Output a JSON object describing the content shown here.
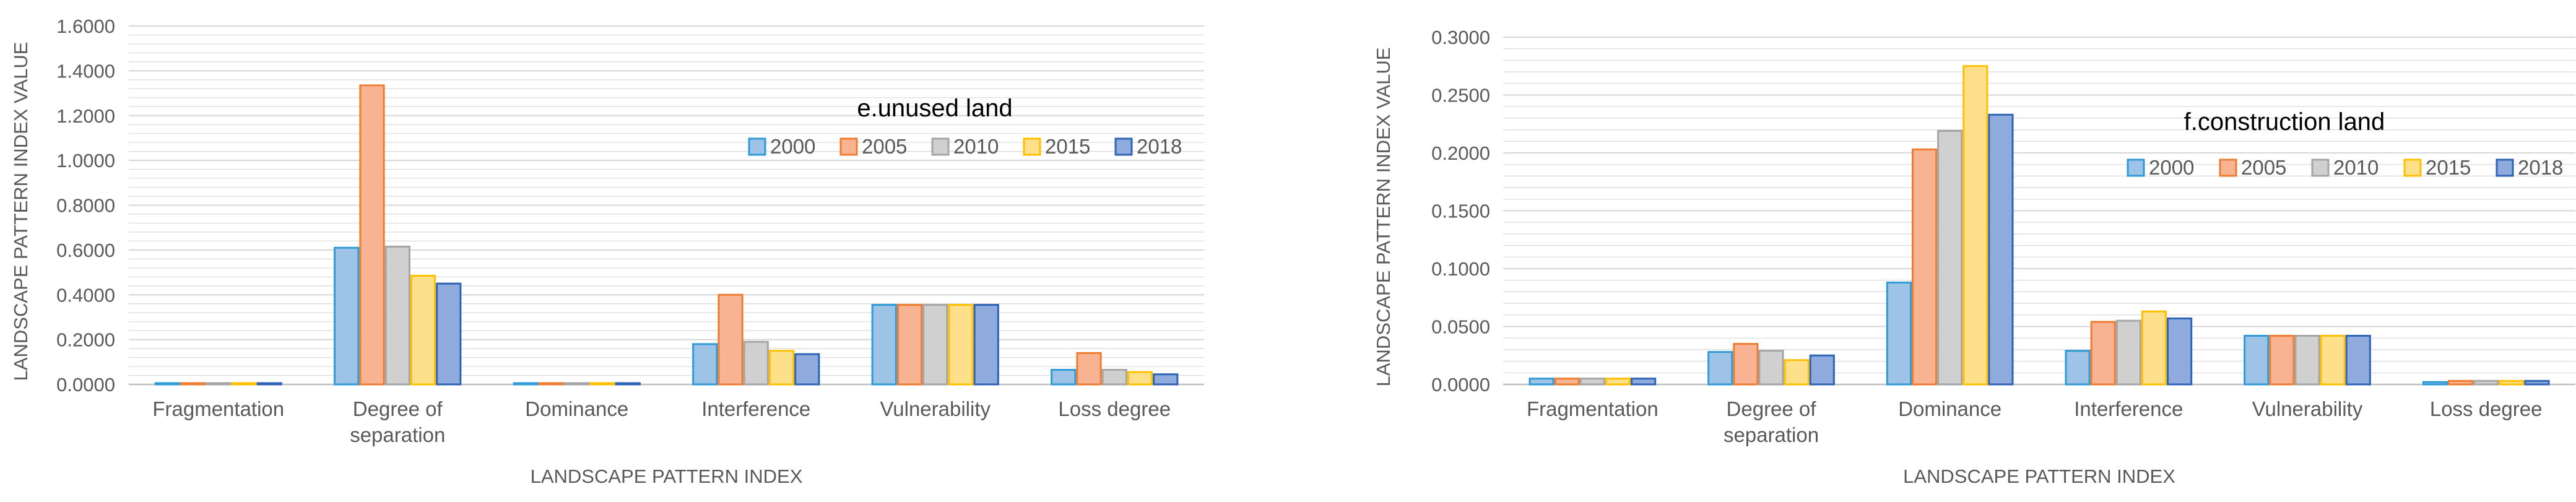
{
  "chart_data": [
    {
      "type": "bar",
      "annotation": "e.unused land",
      "xlabel": "LANDSCAPE PATTERN INDEX",
      "ylabel": "LANDSCAPE PATTERN INDEX VALUE",
      "ylim": [
        0,
        1.6
      ],
      "ystep": 0.2,
      "tick_decimals": 4,
      "grid": true,
      "legend_position": "right",
      "categories": [
        [
          "Fragmentation"
        ],
        [
          "Degree of",
          "separation"
        ],
        [
          "Dominance"
        ],
        [
          "Interference"
        ],
        [
          "Vulnerability"
        ],
        [
          "Loss degree"
        ]
      ],
      "series": [
        {
          "name": "2000",
          "values": [
            0.005,
            0.61,
            0.005,
            0.18,
            0.355,
            0.065
          ]
        },
        {
          "name": "2005",
          "values": [
            0.005,
            1.335,
            0.005,
            0.4,
            0.355,
            0.14
          ]
        },
        {
          "name": "2010",
          "values": [
            0.005,
            0.615,
            0.005,
            0.19,
            0.355,
            0.065
          ]
        },
        {
          "name": "2015",
          "values": [
            0.005,
            0.485,
            0.005,
            0.15,
            0.355,
            0.055
          ]
        },
        {
          "name": "2018",
          "values": [
            0.005,
            0.45,
            0.005,
            0.135,
            0.355,
            0.045
          ]
        }
      ]
    },
    {
      "type": "bar",
      "annotation": "f.construction land",
      "xlabel": "LANDSCAPE PATTERN INDEX",
      "ylabel": "LANDSCAPE PATTERN INDEX VALUE",
      "ylim": [
        0,
        0.3
      ],
      "ystep": 0.05,
      "tick_decimals": 4,
      "grid": true,
      "legend_position": "right",
      "categories": [
        [
          "Fragmentation"
        ],
        [
          "Degree of",
          "separation"
        ],
        [
          "Dominance"
        ],
        [
          "Interference"
        ],
        [
          "Vulnerability"
        ],
        [
          "Loss degree"
        ]
      ],
      "series": [
        {
          "name": "2000",
          "values": [
            0.005,
            0.028,
            0.088,
            0.029,
            0.042,
            0.002
          ]
        },
        {
          "name": "2005",
          "values": [
            0.005,
            0.035,
            0.203,
            0.054,
            0.042,
            0.003
          ]
        },
        {
          "name": "2010",
          "values": [
            0.005,
            0.029,
            0.219,
            0.055,
            0.042,
            0.003
          ]
        },
        {
          "name": "2015",
          "values": [
            0.005,
            0.021,
            0.275,
            0.063,
            0.042,
            0.003
          ]
        },
        {
          "name": "2018",
          "values": [
            0.005,
            0.025,
            0.233,
            0.057,
            0.042,
            0.003
          ]
        }
      ]
    }
  ],
  "colors": {
    "series_fill": [
      "#9DC3E6",
      "#F8B393",
      "#D0D0D0",
      "#FFE08A",
      "#8FAADC"
    ],
    "series_stroke": [
      "#2E9AD8",
      "#ED7D31",
      "#A5A5A5",
      "#FFC000",
      "#2F63B6"
    ],
    "grid": "#D9D9D9",
    "axis_text": "#595959",
    "annotation_text": "#000000"
  }
}
